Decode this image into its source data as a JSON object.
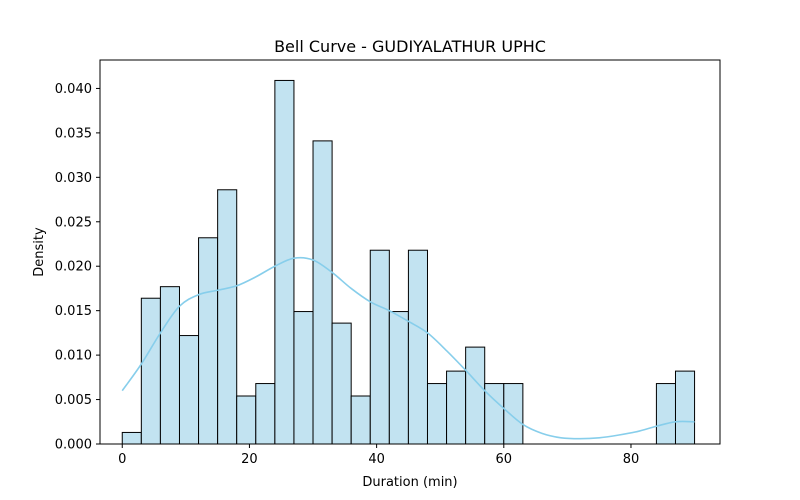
{
  "chart_data": {
    "type": "bar",
    "title": "Bell Curve - GUDIYALATHUR UPHC",
    "xlabel": "Duration (min)",
    "ylabel": "Density",
    "xlim": [
      -3.5,
      94
    ],
    "ylim": [
      0,
      0.0432
    ],
    "xticks": [
      0,
      20,
      40,
      60,
      80
    ],
    "yticks": [
      "0.000",
      "0.005",
      "0.010",
      "0.015",
      "0.020",
      "0.025",
      "0.030",
      "0.035",
      "0.040"
    ],
    "bar_color": "#c2e3f1",
    "bar_edge_color": "#000000",
    "kde_color": "#87ceeb",
    "bins": [
      {
        "x0": 0,
        "x1": 3,
        "density": 0.0013
      },
      {
        "x0": 3,
        "x1": 6,
        "density": 0.0164
      },
      {
        "x0": 6,
        "x1": 9,
        "density": 0.0177
      },
      {
        "x0": 9,
        "x1": 12,
        "density": 0.0122
      },
      {
        "x0": 12,
        "x1": 15,
        "density": 0.0232
      },
      {
        "x0": 15,
        "x1": 18,
        "density": 0.0286
      },
      {
        "x0": 18,
        "x1": 21,
        "density": 0.0054
      },
      {
        "x0": 21,
        "x1": 24,
        "density": 0.0068
      },
      {
        "x0": 24,
        "x1": 27,
        "density": 0.0409
      },
      {
        "x0": 27,
        "x1": 30,
        "density": 0.0149
      },
      {
        "x0": 30,
        "x1": 33,
        "density": 0.0341
      },
      {
        "x0": 33,
        "x1": 36,
        "density": 0.0136
      },
      {
        "x0": 36,
        "x1": 39,
        "density": 0.0054
      },
      {
        "x0": 39,
        "x1": 42,
        "density": 0.0218
      },
      {
        "x0": 42,
        "x1": 45,
        "density": 0.0149
      },
      {
        "x0": 45,
        "x1": 48,
        "density": 0.0218
      },
      {
        "x0": 48,
        "x1": 51,
        "density": 0.0068
      },
      {
        "x0": 51,
        "x1": 54,
        "density": 0.0082
      },
      {
        "x0": 54,
        "x1": 57,
        "density": 0.0109
      },
      {
        "x0": 57,
        "x1": 60,
        "density": 0.0068
      },
      {
        "x0": 60,
        "x1": 63,
        "density": 0.0068
      },
      {
        "x0": 84,
        "x1": 87,
        "density": 0.0068
      },
      {
        "x0": 87,
        "x1": 90,
        "density": 0.0082
      }
    ],
    "kde": {
      "x": [
        0,
        3,
        6,
        9,
        12,
        15,
        18,
        21,
        24,
        27,
        30,
        33,
        36,
        39,
        42,
        45,
        48,
        51,
        54,
        57,
        60,
        63,
        66,
        69,
        72,
        75,
        78,
        81,
        84,
        87,
        90
      ],
      "y": [
        0.006,
        0.009,
        0.0125,
        0.0155,
        0.0168,
        0.0173,
        0.0178,
        0.0188,
        0.02,
        0.0209,
        0.0207,
        0.0193,
        0.0175,
        0.016,
        0.015,
        0.0138,
        0.0125,
        0.0105,
        0.0083,
        0.006,
        0.004,
        0.0022,
        0.0012,
        0.0007,
        0.0006,
        0.0007,
        0.001,
        0.0014,
        0.002,
        0.0025,
        0.0025
      ]
    }
  }
}
